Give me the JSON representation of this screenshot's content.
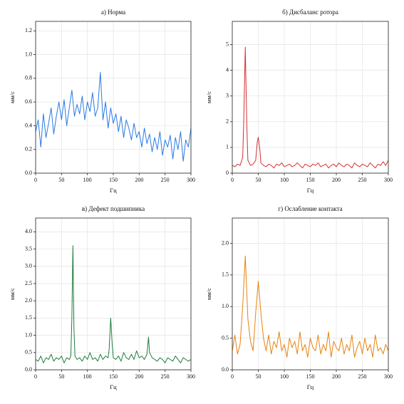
{
  "chart_data": [
    {
      "type": "line",
      "title": "а) Норма",
      "xlabel": "Гц",
      "ylabel": "мм/с",
      "color": "#2a7ae2",
      "grid": true,
      "xlim": [
        0,
        300
      ],
      "xticks": [
        0,
        50,
        100,
        150,
        200,
        250,
        300
      ],
      "ylim": [
        0,
        1.28
      ],
      "yticks": [
        {
          "value": 0,
          "label": "0.0"
        },
        0.2,
        0.4,
        0.6,
        0.8,
        {
          "value": 1,
          "label": "1.0"
        },
        1.2
      ],
      "x": [
        0,
        5,
        10,
        15,
        20,
        25,
        30,
        35,
        40,
        45,
        50,
        55,
        60,
        65,
        70,
        75,
        80,
        85,
        90,
        95,
        100,
        105,
        110,
        115,
        120,
        125,
        130,
        135,
        140,
        145,
        150,
        155,
        160,
        165,
        170,
        175,
        180,
        185,
        190,
        195,
        200,
        205,
        210,
        215,
        220,
        225,
        230,
        235,
        240,
        245,
        250,
        255,
        260,
        265,
        270,
        275,
        280,
        285,
        290,
        295,
        300
      ],
      "values": [
        0.35,
        0.45,
        0.22,
        0.5,
        0.3,
        0.42,
        0.55,
        0.33,
        0.48,
        0.6,
        0.45,
        0.62,
        0.4,
        0.55,
        0.7,
        0.48,
        0.58,
        0.5,
        0.65,
        0.45,
        0.6,
        0.52,
        0.68,
        0.48,
        0.55,
        0.85,
        0.45,
        0.6,
        0.38,
        0.55,
        0.42,
        0.5,
        0.35,
        0.48,
        0.3,
        0.45,
        0.38,
        0.28,
        0.42,
        0.3,
        0.35,
        0.22,
        0.38,
        0.25,
        0.33,
        0.18,
        0.3,
        0.2,
        0.35,
        0.15,
        0.28,
        0.22,
        0.32,
        0.12,
        0.3,
        0.2,
        0.35,
        0.1,
        0.28,
        0.22,
        0.38
      ]
    },
    {
      "type": "line",
      "title": "б) Дисбаланс ротора",
      "xlabel": "Гц",
      "ylabel": "мм/с",
      "color": "#d42f2f",
      "grid": true,
      "xlim": [
        0,
        300
      ],
      "xticks": [
        0,
        50,
        100,
        150,
        200,
        250,
        300
      ],
      "ylim": [
        0,
        5.9
      ],
      "yticks": [
        0,
        1,
        2,
        3,
        4,
        5
      ],
      "x": [
        0,
        5,
        10,
        15,
        20,
        22,
        25,
        28,
        30,
        35,
        40,
        45,
        48,
        50,
        53,
        55,
        60,
        65,
        70,
        75,
        80,
        85,
        90,
        95,
        100,
        105,
        110,
        115,
        120,
        125,
        130,
        135,
        140,
        145,
        150,
        155,
        160,
        165,
        170,
        175,
        180,
        185,
        190,
        195,
        200,
        205,
        210,
        215,
        220,
        225,
        230,
        235,
        240,
        245,
        250,
        255,
        260,
        265,
        270,
        275,
        280,
        285,
        290,
        295,
        300
      ],
      "values": [
        0.3,
        0.25,
        0.35,
        0.3,
        0.6,
        2.0,
        4.9,
        1.8,
        0.5,
        0.3,
        0.35,
        0.5,
        1.2,
        1.4,
        0.9,
        0.4,
        0.3,
        0.25,
        0.35,
        0.3,
        0.2,
        0.35,
        0.3,
        0.4,
        0.25,
        0.3,
        0.35,
        0.25,
        0.3,
        0.4,
        0.3,
        0.2,
        0.35,
        0.3,
        0.25,
        0.35,
        0.3,
        0.4,
        0.25,
        0.3,
        0.35,
        0.2,
        0.3,
        0.35,
        0.25,
        0.4,
        0.3,
        0.25,
        0.35,
        0.3,
        0.2,
        0.4,
        0.3,
        0.25,
        0.35,
        0.3,
        0.25,
        0.4,
        0.3,
        0.2,
        0.35,
        0.3,
        0.45,
        0.3,
        0.5
      ]
    },
    {
      "type": "line",
      "title": "в) Дефект подшипника",
      "xlabel": "Гц",
      "ylabel": "мм/с",
      "color": "#1f7d3c",
      "grid": true,
      "xlim": [
        0,
        300
      ],
      "xticks": [
        0,
        50,
        100,
        150,
        200,
        250,
        300
      ],
      "ylim": [
        0,
        4.4
      ],
      "yticks": [
        {
          "value": 0,
          "label": "0.0"
        },
        0.5,
        {
          "value": 1,
          "label": "1.0"
        },
        1.5,
        {
          "value": 2,
          "label": "2.0"
        },
        2.5,
        {
          "value": 3,
          "label": "3.0"
        },
        3.5,
        {
          "value": 4,
          "label": "4.0"
        }
      ],
      "x": [
        0,
        5,
        10,
        15,
        20,
        25,
        30,
        35,
        40,
        45,
        50,
        55,
        60,
        65,
        68,
        70,
        72,
        74,
        76,
        80,
        85,
        90,
        95,
        100,
        105,
        110,
        115,
        120,
        125,
        130,
        135,
        140,
        142,
        145,
        148,
        150,
        155,
        160,
        165,
        170,
        175,
        180,
        185,
        190,
        195,
        200,
        205,
        210,
        215,
        218,
        220,
        225,
        230,
        235,
        240,
        245,
        250,
        255,
        260,
        265,
        270,
        275,
        280,
        285,
        290,
        295,
        300
      ],
      "values": [
        0.3,
        0.25,
        0.4,
        0.2,
        0.35,
        0.3,
        0.45,
        0.25,
        0.35,
        0.3,
        0.4,
        0.2,
        0.35,
        0.3,
        0.4,
        1.5,
        3.6,
        1.2,
        0.4,
        0.3,
        0.35,
        0.25,
        0.4,
        0.3,
        0.5,
        0.3,
        0.35,
        0.25,
        0.45,
        0.3,
        0.4,
        0.35,
        0.6,
        1.5,
        0.7,
        0.35,
        0.3,
        0.4,
        0.25,
        0.5,
        0.35,
        0.3,
        0.45,
        0.3,
        0.55,
        0.35,
        0.4,
        0.3,
        0.45,
        0.95,
        0.5,
        0.35,
        0.3,
        0.25,
        0.35,
        0.3,
        0.2,
        0.35,
        0.3,
        0.25,
        0.4,
        0.3,
        0.2,
        0.35,
        0.3,
        0.25,
        0.3
      ]
    },
    {
      "type": "line",
      "title": "г) Ослабление контакта",
      "xlabel": "Гц",
      "ylabel": "мм/с",
      "color": "#e8820e",
      "grid": true,
      "xlim": [
        0,
        300
      ],
      "xticks": [
        0,
        50,
        100,
        150,
        200,
        250,
        300
      ],
      "ylim": [
        0,
        2.4
      ],
      "yticks": [
        {
          "value": 0,
          "label": "0.0"
        },
        0.5,
        {
          "value": 1,
          "label": "1.0"
        },
        1.5,
        {
          "value": 2,
          "label": "2.0"
        }
      ],
      "x": [
        0,
        5,
        10,
        15,
        20,
        25,
        30,
        35,
        40,
        45,
        50,
        55,
        60,
        65,
        70,
        75,
        80,
        85,
        90,
        95,
        100,
        105,
        110,
        115,
        120,
        125,
        130,
        135,
        140,
        145,
        150,
        155,
        160,
        165,
        170,
        175,
        180,
        185,
        190,
        195,
        200,
        205,
        210,
        215,
        220,
        225,
        230,
        235,
        240,
        245,
        250,
        255,
        260,
        265,
        270,
        275,
        280,
        285,
        290,
        295,
        300
      ],
      "values": [
        0.3,
        0.55,
        0.25,
        0.4,
        1.0,
        1.8,
        0.8,
        0.45,
        0.3,
        0.9,
        1.4,
        0.9,
        0.5,
        0.3,
        0.55,
        0.25,
        0.45,
        0.35,
        0.6,
        0.3,
        0.4,
        0.2,
        0.5,
        0.35,
        0.45,
        0.25,
        0.6,
        0.3,
        0.4,
        0.2,
        0.5,
        0.35,
        0.3,
        0.55,
        0.25,
        0.4,
        0.3,
        0.6,
        0.2,
        0.45,
        0.35,
        0.3,
        0.5,
        0.25,
        0.4,
        0.3,
        0.55,
        0.2,
        0.35,
        0.45,
        0.25,
        0.5,
        0.3,
        0.4,
        0.2,
        0.55,
        0.3,
        0.35,
        0.25,
        0.4,
        0.3
      ]
    }
  ]
}
